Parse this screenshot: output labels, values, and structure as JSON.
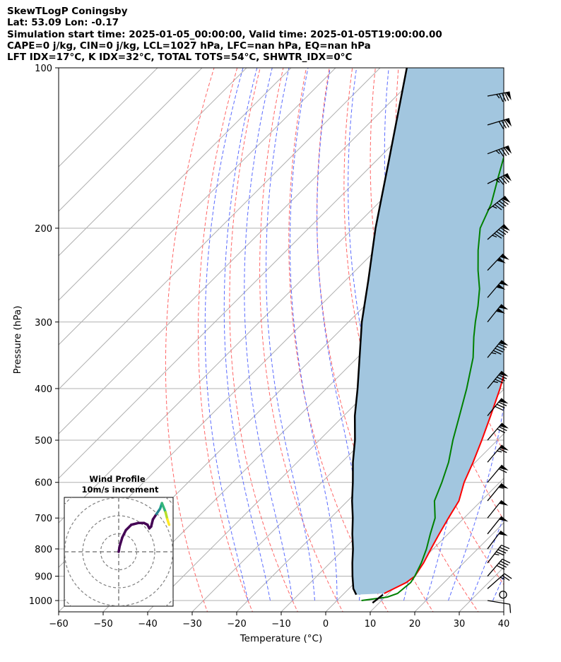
{
  "header": {
    "title": "SkewTLogP Coningsby",
    "location": "Lat: 53.09   Lon: -0.17",
    "times": "Simulation start time: 2025-01-05_00:00:00, Valid time: 2025-01-05T19:00:00.00",
    "parcel": "CAPE=0 j/kg, CIN=0 j/kg, LCL=1027 hPa, LFC=nan hPa, EQ=nan hPa",
    "indices": "LFT IDX=17°C, K IDX=32°C, TOTAL TOTS=54°C, SHWTR_IDX=0°C"
  },
  "chart_data": {
    "type": "line",
    "chart_kind": "skew-T log-P diagram",
    "xlabel": "Temperature (°C)",
    "ylabel": "Pressure (hPa)",
    "xlim": [
      -60,
      40
    ],
    "ylim": [
      1050,
      100
    ],
    "y_scale": "log",
    "grid": true,
    "x_ticks": [
      -60,
      -50,
      -40,
      -30,
      -20,
      -10,
      0,
      10,
      20,
      30,
      40
    ],
    "y_ticks": [
      1000,
      900,
      800,
      700,
      600,
      500,
      400,
      300,
      200,
      100
    ],
    "series": [
      {
        "role": "temperature",
        "color": "#ff0000",
        "points": [
          {
            "p": 970,
            "t": 9.0
          },
          {
            "p": 925,
            "t": 11.5
          },
          {
            "p": 900,
            "t": 12.0
          },
          {
            "p": 850,
            "t": 11.0
          },
          {
            "p": 800,
            "t": 9.5
          },
          {
            "p": 750,
            "t": 8.0
          },
          {
            "p": 700,
            "t": 6.5
          },
          {
            "p": 650,
            "t": 5.0
          },
          {
            "p": 600,
            "t": 2.0
          },
          {
            "p": 550,
            "t": -0.5
          },
          {
            "p": 500,
            "t": -3.5
          },
          {
            "p": 450,
            "t": -7.0
          },
          {
            "p": 400,
            "t": -11.0
          },
          {
            "p": 350,
            "t": -16.0
          },
          {
            "p": 320,
            "t": -20.0
          },
          {
            "p": 300,
            "t": -23.0
          },
          {
            "p": 280,
            "t": -26.0
          },
          {
            "p": 260,
            "t": -30.5
          },
          {
            "p": 240,
            "t": -34.5
          },
          {
            "p": 220,
            "t": -38.5
          },
          {
            "p": 200,
            "t": -42.5
          },
          {
            "p": 180,
            "t": -45.5
          },
          {
            "p": 160,
            "t": -48.5
          },
          {
            "p": 140,
            "t": -51.5
          },
          {
            "p": 120,
            "t": -54.5
          },
          {
            "p": 110,
            "t": -56.5
          },
          {
            "p": 100,
            "t": -58.5
          }
        ]
      },
      {
        "role": "dewpoint",
        "color": "#008000",
        "points": [
          {
            "p": 1000,
            "t": 5.5
          },
          {
            "p": 985,
            "t": 10.5
          },
          {
            "p": 970,
            "t": 12.0
          },
          {
            "p": 925,
            "t": 12.5
          },
          {
            "p": 900,
            "t": 12.0
          },
          {
            "p": 850,
            "t": 10.5
          },
          {
            "p": 800,
            "t": 8.5
          },
          {
            "p": 750,
            "t": 6.0
          },
          {
            "p": 700,
            "t": 3.5
          },
          {
            "p": 650,
            "t": -0.5
          },
          {
            "p": 600,
            "t": -3.0
          },
          {
            "p": 550,
            "t": -6.0
          },
          {
            "p": 500,
            "t": -10.0
          },
          {
            "p": 450,
            "t": -14.0
          },
          {
            "p": 400,
            "t": -18.5
          },
          {
            "p": 350,
            "t": -24.0
          },
          {
            "p": 320,
            "t": -28.5
          },
          {
            "p": 300,
            "t": -31.5
          },
          {
            "p": 280,
            "t": -34.5
          },
          {
            "p": 260,
            "t": -38.0
          },
          {
            "p": 240,
            "t": -42.5
          },
          {
            "p": 220,
            "t": -47.0
          },
          {
            "p": 200,
            "t": -51.5
          },
          {
            "p": 180,
            "t": -54.5
          },
          {
            "p": 160,
            "t": -59.0
          },
          {
            "p": 140,
            "t": -64.0
          },
          {
            "p": 130,
            "t": -65.5
          },
          {
            "p": 120,
            "t": -64.0
          },
          {
            "p": 110,
            "t": -62.5
          },
          {
            "p": 100,
            "t": -61.0
          }
        ]
      },
      {
        "role": "parcel",
        "color": "#000000",
        "points": [
          {
            "p": 975,
            "t": 3.0
          },
          {
            "p": 950,
            "t": 1.0
          },
          {
            "p": 900,
            "t": -2.0
          },
          {
            "p": 850,
            "t": -5.0
          },
          {
            "p": 800,
            "t": -8.0
          },
          {
            "p": 750,
            "t": -11.5
          },
          {
            "p": 700,
            "t": -15.0
          },
          {
            "p": 650,
            "t": -19.0
          },
          {
            "p": 600,
            "t": -23.0
          },
          {
            "p": 550,
            "t": -27.5
          },
          {
            "p": 500,
            "t": -32.0
          },
          {
            "p": 450,
            "t": -37.5
          },
          {
            "p": 400,
            "t": -43.0
          },
          {
            "p": 350,
            "t": -49.5
          },
          {
            "p": 300,
            "t": -57.0
          },
          {
            "p": 250,
            "t": -65.0
          },
          {
            "p": 200,
            "t": -75.0
          },
          {
            "p": 150,
            "t": -87.0
          },
          {
            "p": 100,
            "t": -104.0
          }
        ]
      },
      {
        "role": "surface marker",
        "color": "#000000",
        "points": [
          {
            "p": 1010,
            "t": 8.5
          },
          {
            "p": 975,
            "t": 9.0
          }
        ]
      }
    ],
    "shaded_region": {
      "color": "#a2c6df",
      "between": [
        "parcel",
        "temperature"
      ]
    },
    "reference_lines": {
      "dry_adiabats": "red dashed",
      "moist_adiabats": "blue dashed",
      "mixing_ratio": "blue dashed",
      "isotherms": "gray solid"
    },
    "wind_barbs": [
      {
        "p": 1000,
        "u": -6,
        "v": 1
      },
      {
        "p": 975,
        "u": 0,
        "v": 0
      },
      {
        "p": 950,
        "u": -9,
        "v": -8
      },
      {
        "p": 900,
        "u": -13,
        "v": -15
      },
      {
        "p": 850,
        "u": -14,
        "v": -18
      },
      {
        "p": 800,
        "u": -15,
        "v": -20
      },
      {
        "p": 750,
        "u": -16,
        "v": -20
      },
      {
        "p": 700,
        "u": -16,
        "v": -20
      },
      {
        "p": 650,
        "u": -18,
        "v": -22
      },
      {
        "p": 600,
        "u": -20,
        "v": -24
      },
      {
        "p": 550,
        "u": -22,
        "v": -26
      },
      {
        "p": 500,
        "u": -24,
        "v": -28
      },
      {
        "p": 450,
        "u": -26,
        "v": -32
      },
      {
        "p": 400,
        "u": -28,
        "v": -34
      },
      {
        "p": 350,
        "u": -30,
        "v": -37
      },
      {
        "p": 300,
        "u": -32,
        "v": -40
      },
      {
        "p": 270,
        "u": -34,
        "v": -40
      },
      {
        "p": 240,
        "u": -36,
        "v": -38
      },
      {
        "p": 210,
        "u": -37,
        "v": -33
      },
      {
        "p": 185,
        "u": -38,
        "v": -30
      },
      {
        "p": 165,
        "u": -40,
        "v": -20
      },
      {
        "p": 145,
        "u": -40,
        "v": -15
      },
      {
        "p": 128,
        "u": -40,
        "v": -12
      },
      {
        "p": 113,
        "u": -42,
        "v": -8
      }
    ],
    "inset": {
      "title": "Wind Profile",
      "subtitle": "10m/s increment",
      "ring_increment_ms": 10,
      "hodograph": [
        {
          "u": 0,
          "v": 0
        },
        {
          "u": 0.5,
          "v": 3
        },
        {
          "u": 2,
          "v": 8
        },
        {
          "u": 4,
          "v": 12
        },
        {
          "u": 7,
          "v": 15
        },
        {
          "u": 11,
          "v": 16
        },
        {
          "u": 14,
          "v": 16
        },
        {
          "u": 16,
          "v": 15
        },
        {
          "u": 17,
          "v": 13
        },
        {
          "u": 18,
          "v": 14
        },
        {
          "u": 19,
          "v": 18
        },
        {
          "u": 21,
          "v": 21
        },
        {
          "u": 23,
          "v": 24
        },
        {
          "u": 24,
          "v": 27
        },
        {
          "u": 26,
          "v": 22
        },
        {
          "u": 27,
          "v": 18
        },
        {
          "u": 28,
          "v": 15
        }
      ]
    }
  }
}
